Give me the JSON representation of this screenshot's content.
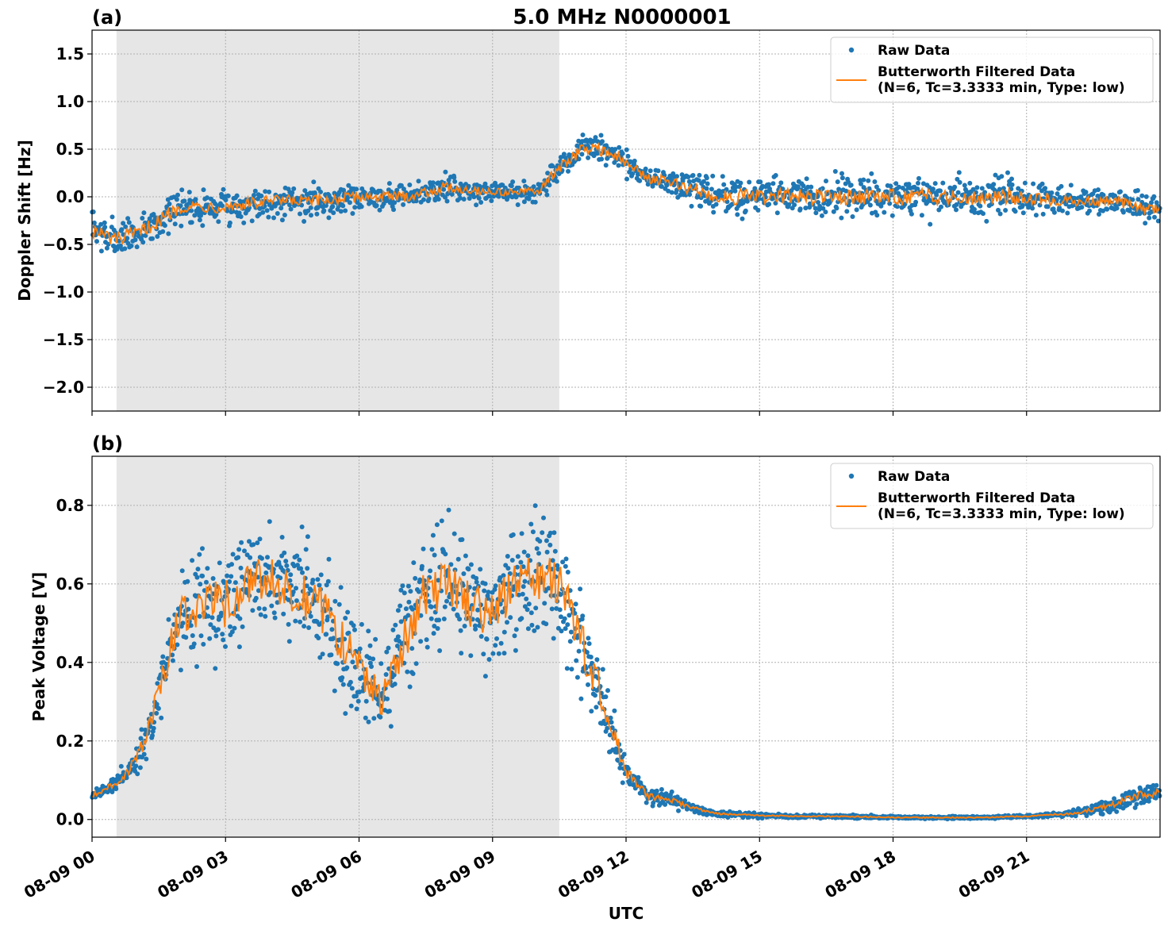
{
  "figure": {
    "title": "5.0 MHz N0000001",
    "xlabel": "UTC"
  },
  "colors": {
    "raw": "#1f77b4",
    "filtered": "#ff7f0e",
    "shade": "#e6e6e6",
    "grid": "#b0b0b0"
  },
  "chart_data": [
    {
      "type": "scatter",
      "panel_label": "(a)",
      "ylabel": "Doppler Shift [Hz]",
      "x_unit": "hours since 08-09 00 UTC",
      "xlim": [
        0,
        24
      ],
      "ylim": [
        -2.25,
        1.75
      ],
      "xticks": [
        0,
        3,
        6,
        9,
        12,
        15,
        18,
        21
      ],
      "xtick_labels": [
        "08-09 00",
        "08-09 03",
        "08-09 06",
        "08-09 09",
        "08-09 12",
        "08-09 15",
        "08-09 18",
        "08-09 21"
      ],
      "yticks": [
        1.5,
        1.0,
        0.5,
        0.0,
        -0.5,
        -1.0,
        -1.5,
        -2.0
      ],
      "ytick_labels": [
        "1.5",
        "1.0",
        "0.5",
        "0.0",
        "−0.5",
        "−1.0",
        "−1.5",
        "−2.0"
      ],
      "shaded_region": [
        0.55,
        10.5
      ],
      "grid": true,
      "legend": {
        "position": "upper right",
        "entries": [
          {
            "label": "Raw Data"
          },
          {
            "label": "Butterworth Filtered Data",
            "label2": "(N=6, Tc=3.3333 min, Type: low)"
          }
        ]
      },
      "series": [
        {
          "name": "Raw Data",
          "type": "scatter",
          "x": [
            0,
            0.5,
            1,
            1.5,
            2,
            2.5,
            3,
            4,
            5,
            6,
            7,
            8,
            9,
            10,
            10.5,
            11,
            11.5,
            12,
            12.5,
            13,
            14,
            15,
            16,
            17,
            18,
            19,
            20,
            21,
            22,
            23,
            24
          ],
          "center": [
            -0.35,
            -0.45,
            -0.4,
            -0.25,
            -0.1,
            -0.1,
            -0.1,
            -0.05,
            -0.05,
            0.0,
            0.0,
            0.1,
            0.05,
            0.05,
            0.3,
            0.5,
            0.5,
            0.35,
            0.2,
            0.15,
            0.0,
            0.0,
            0.0,
            0.0,
            0.0,
            0.0,
            0.0,
            0.0,
            -0.05,
            -0.05,
            -0.15
          ],
          "spread": [
            0.3,
            0.3,
            0.3,
            0.25,
            0.25,
            0.25,
            0.25,
            0.25,
            0.25,
            0.2,
            0.2,
            0.2,
            0.15,
            0.15,
            0.2,
            0.25,
            0.25,
            0.2,
            0.2,
            0.2,
            0.3,
            0.3,
            0.3,
            0.3,
            0.3,
            0.3,
            0.3,
            0.3,
            0.2,
            0.2,
            0.2
          ]
        },
        {
          "name": "Butterworth Filtered Data",
          "type": "line",
          "x": [
            0,
            0.5,
            1,
            1.5,
            2,
            2.5,
            3,
            4,
            5,
            6,
            7,
            8,
            9,
            10,
            10.5,
            11,
            11.5,
            12,
            12.5,
            13,
            14,
            15,
            16,
            17,
            18,
            19,
            20,
            21,
            22,
            23,
            24
          ],
          "y": [
            -0.35,
            -0.45,
            -0.4,
            -0.25,
            -0.1,
            -0.1,
            -0.1,
            -0.05,
            -0.05,
            0.0,
            0.0,
            0.1,
            0.05,
            0.05,
            0.3,
            0.5,
            0.5,
            0.35,
            0.2,
            0.15,
            0.0,
            0.0,
            0.0,
            0.0,
            0.0,
            0.0,
            0.0,
            0.0,
            -0.05,
            -0.05,
            -0.15
          ]
        }
      ]
    },
    {
      "type": "scatter",
      "panel_label": "(b)",
      "ylabel": "Peak Voltage [V]",
      "x_unit": "hours since 08-09 00 UTC",
      "xlim": [
        0,
        24
      ],
      "ylim": [
        -0.045,
        0.925
      ],
      "xticks": [
        0,
        3,
        6,
        9,
        12,
        15,
        18,
        21
      ],
      "xtick_labels": [
        "08-09 00",
        "08-09 03",
        "08-09 06",
        "08-09 09",
        "08-09 12",
        "08-09 15",
        "08-09 18",
        "08-09 21"
      ],
      "yticks": [
        0.8,
        0.6,
        0.4,
        0.2,
        0.0
      ],
      "ytick_labels": [
        "0.8",
        "0.6",
        "0.4",
        "0.2",
        "0.0"
      ],
      "shaded_region": [
        0.55,
        10.5
      ],
      "grid": true,
      "legend": {
        "position": "upper right",
        "entries": [
          {
            "label": "Raw Data"
          },
          {
            "label": "Butterworth Filtered Data",
            "label2": "(N=6, Tc=3.3333 min, Type: low)"
          }
        ]
      },
      "series": [
        {
          "name": "Raw Data",
          "type": "scatter",
          "x": [
            0,
            0.5,
            0.8,
            1.2,
            1.6,
            2,
            2.5,
            3,
            3.5,
            4,
            4.5,
            5,
            5.5,
            6,
            6.5,
            7,
            7.5,
            8,
            8.5,
            9,
            9.5,
            10,
            10.5,
            11,
            11.5,
            12,
            12.5,
            13,
            13.5,
            14,
            15,
            16,
            17,
            18,
            19,
            20,
            21,
            22,
            22.5,
            23,
            23.5,
            24
          ],
          "center": [
            0.06,
            0.09,
            0.12,
            0.2,
            0.38,
            0.52,
            0.55,
            0.55,
            0.6,
            0.62,
            0.58,
            0.55,
            0.48,
            0.38,
            0.3,
            0.45,
            0.58,
            0.6,
            0.55,
            0.52,
            0.6,
            0.62,
            0.6,
            0.45,
            0.3,
            0.12,
            0.06,
            0.05,
            0.03,
            0.015,
            0.01,
            0.008,
            0.008,
            0.005,
            0.005,
            0.005,
            0.008,
            0.015,
            0.025,
            0.04,
            0.06,
            0.07
          ],
          "spread": [
            0.02,
            0.03,
            0.04,
            0.08,
            0.15,
            0.2,
            0.2,
            0.22,
            0.22,
            0.2,
            0.2,
            0.22,
            0.22,
            0.2,
            0.15,
            0.2,
            0.22,
            0.22,
            0.22,
            0.22,
            0.22,
            0.22,
            0.2,
            0.2,
            0.15,
            0.06,
            0.03,
            0.03,
            0.015,
            0.01,
            0.008,
            0.006,
            0.006,
            0.005,
            0.005,
            0.005,
            0.006,
            0.01,
            0.02,
            0.03,
            0.04,
            0.04
          ]
        },
        {
          "name": "Butterworth Filtered Data",
          "type": "line",
          "x": [
            0,
            0.5,
            0.8,
            1.2,
            1.6,
            2,
            2.5,
            3,
            3.5,
            4,
            4.5,
            5,
            5.5,
            6,
            6.5,
            7,
            7.5,
            8,
            8.5,
            9,
            9.5,
            10,
            10.5,
            11,
            11.5,
            12,
            12.5,
            13,
            13.5,
            14,
            15,
            16,
            17,
            18,
            19,
            20,
            21,
            22,
            22.5,
            23,
            23.5,
            24
          ],
          "y": [
            0.06,
            0.09,
            0.12,
            0.2,
            0.38,
            0.52,
            0.55,
            0.55,
            0.6,
            0.62,
            0.58,
            0.55,
            0.48,
            0.38,
            0.3,
            0.45,
            0.58,
            0.6,
            0.55,
            0.52,
            0.6,
            0.62,
            0.6,
            0.45,
            0.3,
            0.12,
            0.06,
            0.05,
            0.03,
            0.015,
            0.01,
            0.008,
            0.008,
            0.005,
            0.005,
            0.005,
            0.008,
            0.015,
            0.025,
            0.04,
            0.06,
            0.07
          ]
        }
      ]
    }
  ]
}
